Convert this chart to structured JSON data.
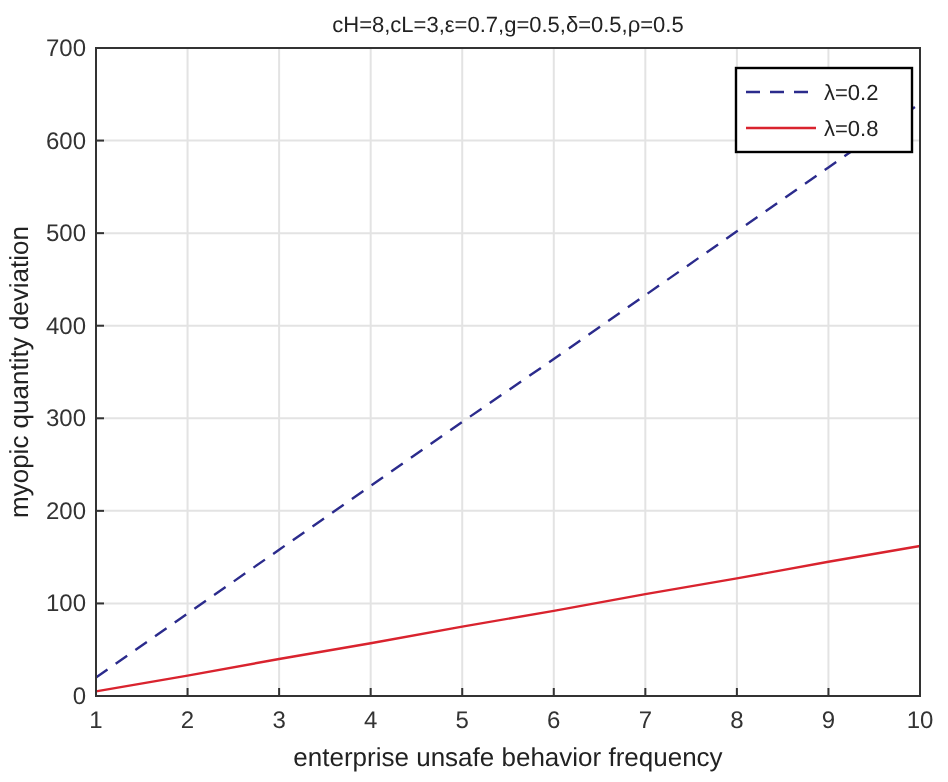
{
  "chart_data": {
    "type": "line",
    "title": "cH=8,cL=3,ε=0.7,g=0.5,δ=0.5,ρ=0.5",
    "xlabel": "enterprise unsafe behavior frequency",
    "ylabel": "myopic quantity deviation",
    "x": [
      1,
      2,
      3,
      4,
      5,
      6,
      7,
      8,
      9,
      10
    ],
    "series": [
      {
        "name": "λ=0.2",
        "color": "#2b2b8c",
        "line_style": "dashed",
        "values": [
          20,
          89,
          158,
          227,
          296,
          364,
          433,
          502,
          571,
          640
        ]
      },
      {
        "name": "λ=0.8",
        "color": "#d9232e",
        "line_style": "solid",
        "values": [
          5,
          22,
          40,
          57,
          75,
          92,
          110,
          127,
          145,
          162
        ]
      }
    ],
    "xlim": [
      1,
      10
    ],
    "xticks": [
      1,
      2,
      3,
      4,
      5,
      6,
      7,
      8,
      9,
      10
    ],
    "ylim": [
      0,
      700
    ],
    "yticks": [
      0,
      100,
      200,
      300,
      400,
      500,
      600,
      700
    ],
    "grid": true,
    "legend": "top right",
    "marker": "none"
  }
}
